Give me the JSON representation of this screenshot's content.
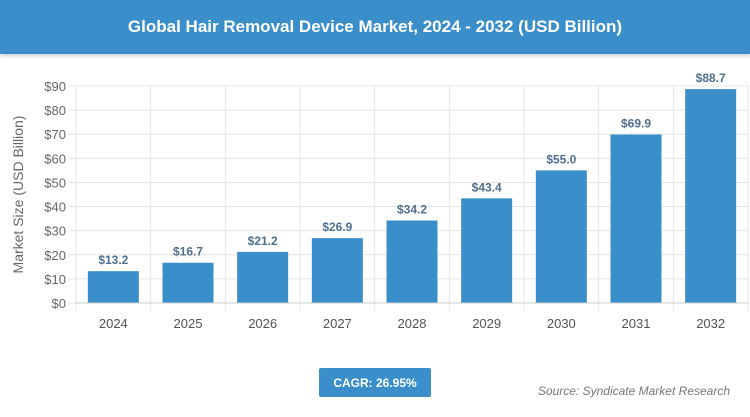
{
  "chart_data": {
    "type": "bar",
    "title": "Global Hair Removal Device Market, 2024 - 2032 (USD Billion)",
    "xlabel": "",
    "ylabel": "Market Size (USD Billion)",
    "ylim": [
      0,
      90
    ],
    "yticks": [
      "$0",
      "$10",
      "$20",
      "$30",
      "$40",
      "$50",
      "$60",
      "$70",
      "$80",
      "$90"
    ],
    "categories": [
      "2024",
      "2025",
      "2026",
      "2027",
      "2028",
      "2029",
      "2030",
      "2031",
      "2032"
    ],
    "values": [
      13.2,
      16.7,
      21.2,
      26.9,
      34.2,
      43.4,
      55.0,
      69.9,
      88.7
    ],
    "data_labels": [
      "$13.2",
      "$16.7",
      "$21.2",
      "$26.9",
      "$34.2",
      "$43.4",
      "$55.0",
      "$69.9",
      "$88.7"
    ],
    "grid": true,
    "bar_color": "#3a8fcb"
  },
  "cagr": "CAGR: 26.95%",
  "source": "Source: Syndicate Market Research"
}
